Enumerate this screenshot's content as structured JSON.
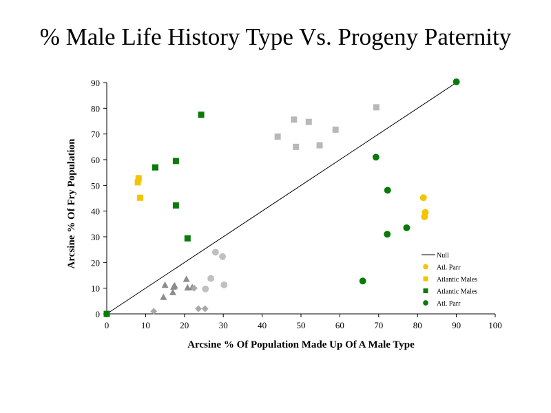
{
  "chart_data": {
    "type": "scatter",
    "title": "% Male Life History Type Vs. Progeny Paternity",
    "xlabel": "Arcsine % Of Population Made Up Of A Male Type",
    "ylabel": "Arcsine % Of Fry Population",
    "xlim": [
      0,
      100
    ],
    "ylim": [
      0,
      90
    ],
    "xticks": [
      0,
      10,
      20,
      30,
      40,
      50,
      60,
      70,
      80,
      90,
      100
    ],
    "yticks": [
      0,
      10,
      20,
      30,
      40,
      50,
      60,
      70,
      80,
      90
    ],
    "legend_position": "bottom-right",
    "grid": false,
    "null_line": {
      "name": "Null",
      "x": [
        0,
        90
      ],
      "y": [
        0,
        90
      ],
      "color": "#000000"
    },
    "series": [
      {
        "name": "Atl. Parr",
        "marker": "circle",
        "color": "#f5c400",
        "x": [
          81.5,
          82,
          81.8
        ],
        "y": [
          45.2,
          39.5,
          37.8
        ]
      },
      {
        "name": "Atlantic Males",
        "marker": "square",
        "color": "#f5c400",
        "x": [
          8,
          8.2,
          8.6
        ],
        "y": [
          51.2,
          52.8,
          45.2
        ]
      },
      {
        "name": "Atlantic Males",
        "marker": "square",
        "color": "#0a7a0a",
        "x": [
          0,
          12.5,
          17.8,
          24.3,
          17.8,
          20.8
        ],
        "y": [
          0,
          57,
          59.5,
          77.5,
          42.2,
          29.4
        ]
      },
      {
        "name": "Atl. Parr",
        "marker": "circle",
        "color": "#0a7a0a",
        "x": [
          90,
          69.3,
          72.3,
          77.2,
          72.2,
          65.9
        ],
        "y": [
          90.3,
          61,
          48.1,
          33.5,
          31,
          12.8
        ]
      },
      {
        "name": "",
        "marker": "square",
        "color": "#b8b8b8",
        "legend": false,
        "x": [
          44,
          48.2,
          48.7,
          52,
          54.8,
          58.9,
          69.4
        ],
        "y": [
          69,
          75.6,
          65,
          74.7,
          65.6,
          71.7,
          80.4
        ]
      },
      {
        "name": "",
        "marker": "circle",
        "color": "#c0c0c0",
        "legend": false,
        "x": [
          28,
          29.8,
          26.8,
          25.4,
          30.2
        ],
        "y": [
          24,
          22.3,
          13.8,
          9.7,
          11.3
        ]
      },
      {
        "name": "",
        "marker": "triangle",
        "color": "#8c8c8c",
        "legend": false,
        "x": [
          15,
          17.2,
          20.5,
          14.6,
          17,
          17.5,
          20.8,
          22
        ],
        "y": [
          11.2,
          10.5,
          13.5,
          6.5,
          8.4,
          10.9,
          10.2,
          10.3
        ]
      },
      {
        "name": "",
        "marker": "diamond",
        "color": "#a8a8a8",
        "legend": false,
        "x": [
          12.1,
          23.6,
          25.3,
          22.5
        ],
        "y": [
          1,
          2,
          2,
          10
        ]
      }
    ]
  }
}
